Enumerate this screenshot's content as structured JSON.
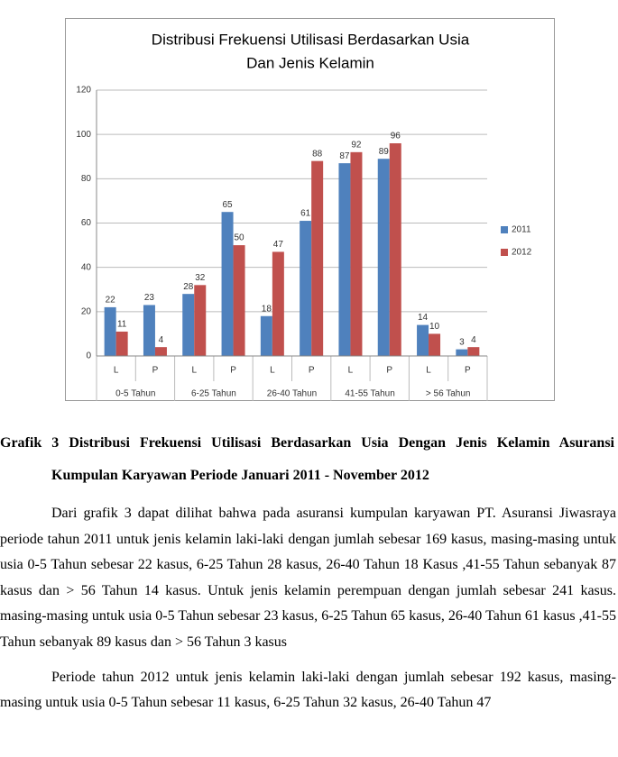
{
  "chart_data": {
    "type": "bar",
    "title": [
      "Distribusi Frekuensi Utilisasi Berdasarkan Usia",
      "Dan Jenis Kelamin"
    ],
    "categories": [
      "L",
      "P",
      "L",
      "P",
      "L",
      "P",
      "L",
      "P",
      "L",
      "P"
    ],
    "groups": [
      "0-5 Tahun",
      "6-25 Tahun",
      "26-40 Tahun",
      "41-55 Tahun",
      "> 56 Tahun"
    ],
    "series": [
      {
        "name": "2011",
        "color": "#4f81bd",
        "values": [
          22,
          23,
          28,
          65,
          18,
          61,
          87,
          89,
          14,
          3
        ]
      },
      {
        "name": "2012",
        "color": "#c0504d",
        "values": [
          11,
          4,
          32,
          50,
          47,
          88,
          92,
          96,
          10,
          4
        ]
      }
    ],
    "ylim": [
      0,
      120
    ],
    "yticks": [
      0,
      20,
      40,
      60,
      80,
      100,
      120
    ],
    "grid": true,
    "legend": "right"
  },
  "caption": "Grafik 3 Distribusi Frekuensi Utilisasi Berdasarkan Usia Dengan Jenis Kelamin Asuransi Kumpulan Karyawan Periode Januari 2011 - November 2012",
  "paragraphs": [
    "Dari grafik 3 dapat dilihat bahwa pada asuransi kumpulan karyawan PT. Asuransi Jiwasraya periode tahun 2011 untuk jenis kelamin laki-laki dengan jumlah sebesar 169 kasus, masing-masing untuk usia 0-5 Tahun sebesar 22 kasus, 6-25 Tahun 28 kasus, 26-40 Tahun 18 Kasus ,41-55 Tahun sebanyak 87 kasus dan > 56 Tahun 14 kasus. Untuk jenis kelamin perempuan dengan jumlah sebesar 241 kasus. masing-masing untuk usia 0-5 Tahun sebesar 23 kasus, 6-25 Tahun 65 kasus, 26-40 Tahun 61 kasus ,41-55 Tahun sebanyak 89 kasus dan > 56 Tahun 3 kasus",
    "Periode tahun 2012 untuk jenis kelamin laki-laki dengan jumlah sebesar 192 kasus, masing-masing untuk usia 0-5 Tahun sebesar 11 kasus, 6-25 Tahun 32 kasus, 26-40 Tahun 47"
  ]
}
